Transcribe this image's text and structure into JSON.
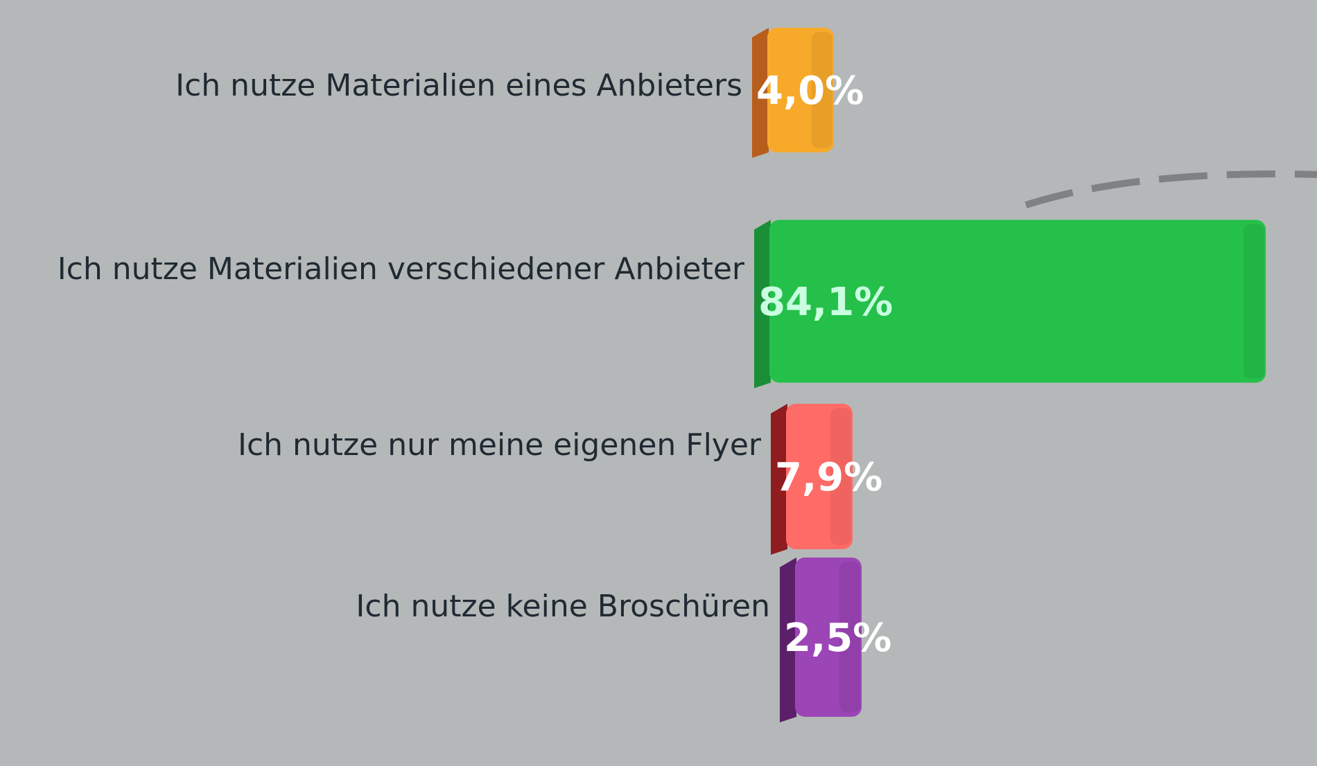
{
  "chart_data": {
    "type": "bar",
    "orientation": "horizontal",
    "style": "3d",
    "categories": [
      "Ich nutze Materialien eines Anbieters",
      "Ich nutze Materialien verschiedener Anbieter",
      "Ich nutze nur meine eigenen Flyer",
      "Ich nutze keine Broschüren"
    ],
    "values": [
      4.0,
      84.1,
      7.9,
      2.5
    ],
    "value_labels": [
      "4,0%",
      "84,1%",
      "7,9%",
      "2,5%"
    ],
    "unit": "%",
    "colors": [
      "#f7a92a",
      "#25c04a",
      "#ff6b66",
      "#9b45b6"
    ],
    "side_colors": [
      "#b85e1c",
      "#1a8f37",
      "#8f1c1f",
      "#5c1f6a"
    ],
    "value_label_colors": [
      "#ffffff",
      "#c9ffe0",
      "#ffffff",
      "#ffffff"
    ],
    "background": "#b5b8b8",
    "legend": "none",
    "grid": false
  }
}
